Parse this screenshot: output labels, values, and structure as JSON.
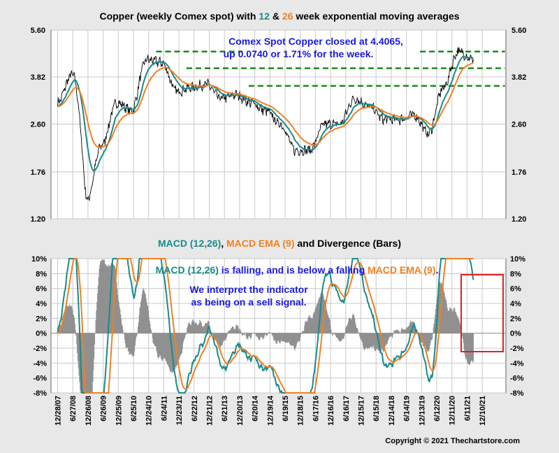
{
  "chart_data": [
    {
      "type": "line",
      "title": [
        "Copper (weekly Comex spot) with ",
        "12",
        " & ",
        "26",
        " week exponential moving averages"
      ],
      "scale": "log",
      "ylim": [
        1.2,
        5.6
      ],
      "y_ticks": [
        "5.60",
        "3.82",
        "2.60",
        "1.76",
        "1.20"
      ],
      "y_tick_values": [
        5.6,
        3.82,
        2.6,
        1.76,
        1.2
      ],
      "grid": true,
      "annotation": {
        "line1": "Comex Spot Copper closed at 4.4065,",
        "line2": "up 0.0740 or 1.71% for the week."
      },
      "reference_levels": [
        4.7,
        4.1,
        3.55
      ],
      "series": [
        {
          "name": "12",
          "color": "#1a8a8a"
        },
        {
          "name": "26",
          "color": "#f08020"
        }
      ],
      "price_color": "#000000",
      "anchor_dates": [
        "2007-12-28",
        "2008-06-27",
        "2008-12-26",
        "2009-06-26",
        "2009-12-25",
        "2010-06-25",
        "2010-12-24",
        "2011-06-24",
        "2011-12-23",
        "2012-06-22",
        "2012-12-21",
        "2013-06-21",
        "2013-12-20",
        "2014-06-20",
        "2014-12-19",
        "2015-06-19",
        "2015-12-18",
        "2016-06-17",
        "2016-12-16",
        "2017-06-16",
        "2017-12-15",
        "2018-06-15",
        "2018-12-14",
        "2019-06-14",
        "2019-12-13",
        "2020-06-12",
        "2020-12-11",
        "2021-06-11",
        "2021-07-23"
      ],
      "price_anchors": [
        3.1,
        3.9,
        1.4,
        2.2,
        3.1,
        2.9,
        4.4,
        4.3,
        3.4,
        3.5,
        3.6,
        3.2,
        3.3,
        3.1,
        2.9,
        2.6,
        2.1,
        2.1,
        2.6,
        2.6,
        3.2,
        3.0,
        2.7,
        2.7,
        2.8,
        2.4,
        3.5,
        4.7,
        4.4065
      ]
    },
    {
      "type": "line",
      "title": [
        "MACD (12,26)",
        ", ",
        "MACD EMA (9)",
        " and Divergence (Bars)"
      ],
      "ylim": [
        -8,
        10
      ],
      "y_ticks": [
        "10%",
        "8%",
        "6%",
        "4%",
        "2%",
        "0%",
        "-2%",
        "-4%",
        "-6%",
        "-8%"
      ],
      "y_tick_values": [
        10,
        8,
        6,
        4,
        2,
        0,
        -2,
        -4,
        -6,
        -8
      ],
      "grid": true,
      "annotation": {
        "line1": [
          "MACD (12,26)",
          " is falling, and is below a falling ",
          "MACD EMA (9)",
          "."
        ],
        "line2": "We interpret the indicator",
        "line3": "as being on a sell signal."
      },
      "series": [
        {
          "name": "MACD (12,26)",
          "color": "#1a8a8a"
        },
        {
          "name": "MACD EMA (9)",
          "color": "#f08020"
        },
        {
          "name": "Divergence (Bars)",
          "color": "#909090"
        }
      ],
      "highlight_box_color": "#e02020"
    }
  ],
  "x_axis": {
    "tick_labels": [
      "12/28/07",
      "6/27/08",
      "12/26/08",
      "6/26/09",
      "12/25/09",
      "6/25/10",
      "12/24/10",
      "6/24/11",
      "12/23/11",
      "6/22/12",
      "12/21/12",
      "6/21/13",
      "12/20/13",
      "6/20/14",
      "12/19/14",
      "6/19/15",
      "12/18/15",
      "6/17/16",
      "12/16/16",
      "6/16/17",
      "12/15/17",
      "6/15/18",
      "12/14/18",
      "6/14/19",
      "12/13/19",
      "6/12/20",
      "12/11/20",
      "6/11/21",
      "12/10/21"
    ]
  },
  "copyright": "Copyright © 2021 Thechartstore.com",
  "colors": {
    "ema12": "#1a8a8a",
    "ema26": "#f08020",
    "annotation_blue": "#1a1adc",
    "level_green": "#1a8a1a",
    "background": "#e8e8e8",
    "plot": "#ffffff"
  }
}
